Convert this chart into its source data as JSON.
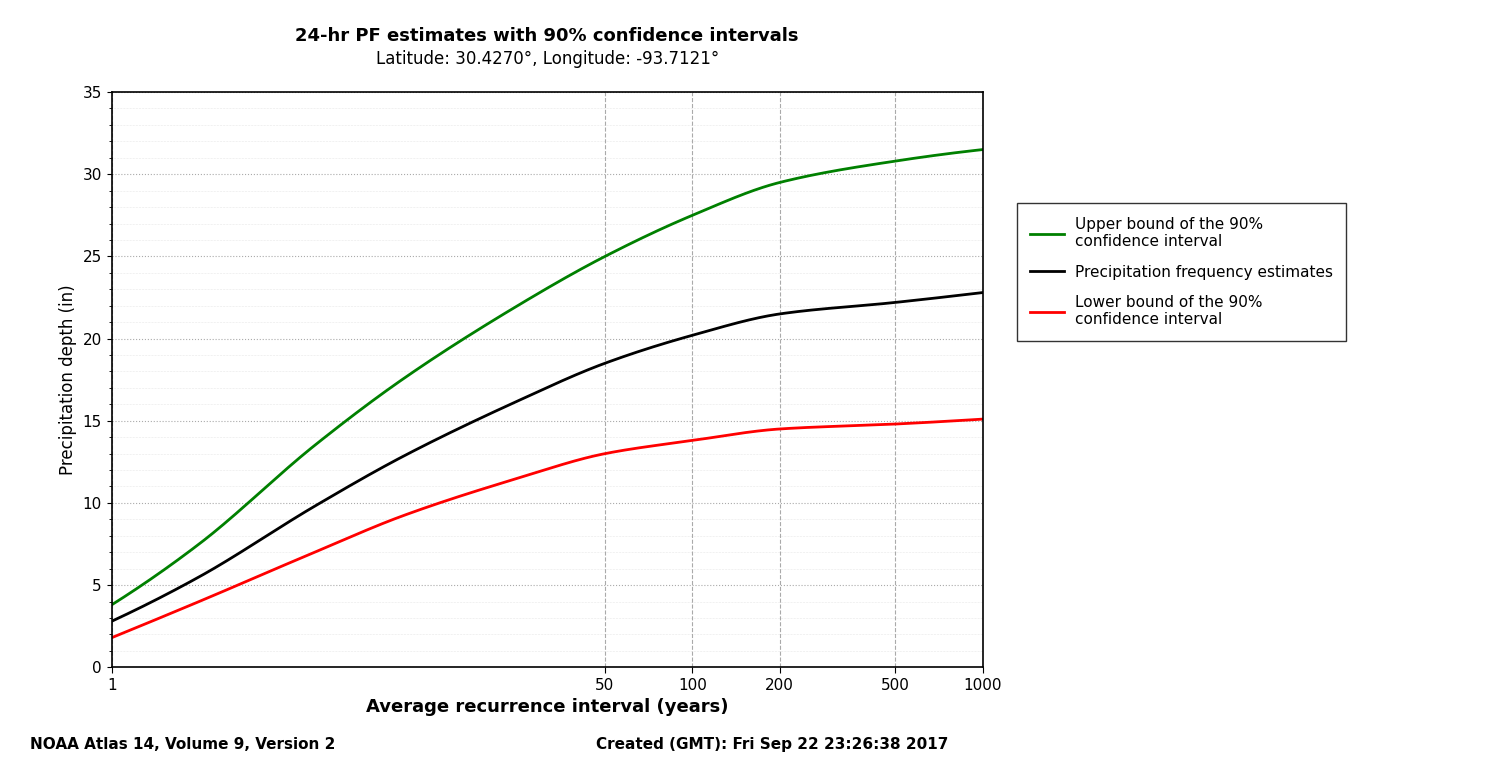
{
  "title_line1": "24-hr PF estimates with 90% confidence intervals",
  "title_line2": "Latitude: 30.4270°, Longitude: -93.7121°",
  "xlabel": "Average recurrence interval (years)",
  "ylabel": "Precipitation depth (in)",
  "footer_left": "NOAA Atlas 14, Volume 9, Version 2",
  "footer_right": "Created (GMT): Fri Sep 22 23:26:38 2017",
  "xlim": [
    1,
    1000
  ],
  "ylim": [
    0,
    35
  ],
  "yticks": [
    0,
    5,
    10,
    15,
    20,
    25,
    30,
    35
  ],
  "xtick_positions": [
    1,
    50,
    100,
    200,
    500,
    1000
  ],
  "xtick_labels": [
    "1",
    "50",
    "100",
    "200",
    "500",
    "1000"
  ],
  "x_knots": [
    1,
    2,
    5,
    10,
    25,
    50,
    100,
    200,
    500,
    1000
  ],
  "upper_bound": [
    3.8,
    7.5,
    13.5,
    17.5,
    22.0,
    25.0,
    27.5,
    29.5,
    30.8,
    31.5
  ],
  "pf_estimates": [
    2.8,
    5.5,
    9.8,
    12.8,
    16.2,
    18.5,
    20.2,
    21.5,
    22.2,
    22.8
  ],
  "lower_bound": [
    1.8,
    4.0,
    7.0,
    9.2,
    11.5,
    13.0,
    13.8,
    14.5,
    14.8,
    15.1
  ],
  "upper_color": "#008000",
  "pf_color": "#000000",
  "lower_color": "#ff0000",
  "line_width": 2.0,
  "legend_labels": [
    "Upper bound of the 90%\nconfidence interval",
    "Precipitation frequency estimates",
    "Lower bound of the 90%\nconfidence interval"
  ],
  "background_color": "#ffffff",
  "grid_color": "#aaaaaa"
}
